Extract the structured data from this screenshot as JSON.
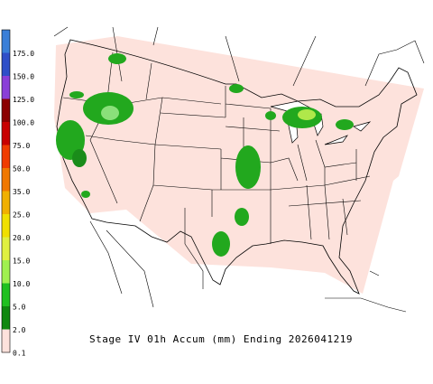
{
  "legend": {
    "labels": [
      "175.0",
      "150.0",
      "125.0",
      "100.0",
      "75.0",
      "50.0",
      "35.0",
      "25.0",
      "20.0",
      "15.0",
      "10.0",
      "5.0",
      "2.0",
      "0.1"
    ]
  },
  "caption": "Stage IV 01h Accum (mm) Ending 2026041219"
}
